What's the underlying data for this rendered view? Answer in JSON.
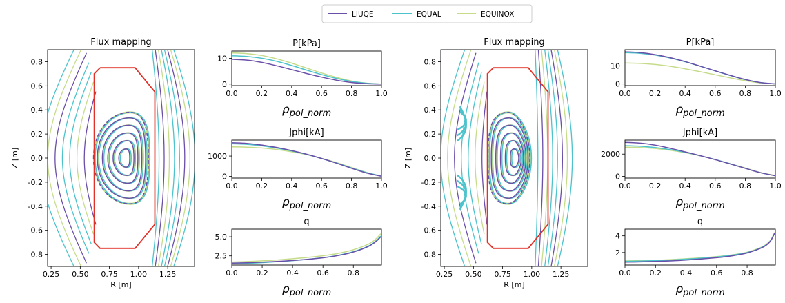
{
  "legend": {
    "placement": "top-center",
    "entries": [
      {
        "name": "LIUQE",
        "color": "#6a4fa8"
      },
      {
        "name": "EQUAL",
        "color": "#4cc3cc"
      },
      {
        "name": "EQUINOX",
        "color": "#c6dc8a"
      }
    ]
  },
  "boundary_color": "#e03228",
  "chart_data": [
    {
      "type": "contour",
      "title": "Flux mapping",
      "xlabel": "R [m]",
      "ylabel": "Z [m]",
      "xlim": [
        0.22,
        1.48
      ],
      "ylim": [
        -0.9,
        0.9
      ],
      "xticks": [
        "0.25",
        "0.50",
        "0.75",
        "1.00",
        "1.25"
      ],
      "yticks": [
        "-0.8",
        "-0.6",
        "-0.4",
        "-0.2",
        "0.0",
        "0.2",
        "0.4",
        "0.6",
        "0.8"
      ],
      "vessel_R": [
        0.67,
        0.97,
        1.14,
        1.14,
        0.97,
        0.67,
        0.62,
        0.62,
        0.67
      ],
      "vessel_Z": [
        0.75,
        0.75,
        0.55,
        -0.55,
        -0.75,
        -0.75,
        -0.7,
        0.7,
        0.75
      ],
      "axis": {
        "R": 0.89,
        "Z": 0.0
      },
      "lcfs_outer": {
        "R_inner": 0.62,
        "R_outer": 1.09,
        "Z_half": 0.38,
        "R_top": 0.93
      },
      "configuration": "limited"
    },
    {
      "type": "line",
      "title": "P[kPa]",
      "xlabel": "ρpol_norm",
      "xlim": [
        0,
        1.0
      ],
      "ylim": [
        -0.6,
        12.8
      ],
      "xticks": [
        "0.0",
        "0.2",
        "0.4",
        "0.6",
        "0.8",
        "1.0"
      ],
      "yticks": [
        "0",
        "10"
      ],
      "series": [
        {
          "name": "LIUQE",
          "x": [
            0,
            0.1,
            0.2,
            0.3,
            0.4,
            0.5,
            0.6,
            0.7,
            0.8,
            0.9,
            1.0
          ],
          "values": [
            9.6,
            9.3,
            8.4,
            7.1,
            5.6,
            4.1,
            2.7,
            1.5,
            0.6,
            0.15,
            0.0
          ]
        },
        {
          "name": "EQUAL",
          "x": [
            0,
            0.1,
            0.2,
            0.3,
            0.4,
            0.5,
            0.6,
            0.7,
            0.8,
            0.9,
            1.0
          ],
          "values": [
            11.0,
            10.7,
            10.0,
            8.8,
            7.2,
            5.4,
            3.7,
            2.2,
            1.0,
            0.3,
            0.0
          ]
        },
        {
          "name": "EQUINOX",
          "x": [
            0,
            0.1,
            0.2,
            0.3,
            0.4,
            0.5,
            0.6,
            0.7,
            0.8,
            0.9,
            1.0
          ],
          "values": [
            12.1,
            11.8,
            11.1,
            9.8,
            8.1,
            6.2,
            4.3,
            2.6,
            1.2,
            0.35,
            0.0
          ]
        }
      ]
    },
    {
      "type": "line",
      "title": "Jphi[kA]",
      "xlabel": "ρpol_norm",
      "xlim": [
        0,
        1.0
      ],
      "ylim": [
        -80,
        1780
      ],
      "xticks": [
        "0.0",
        "0.2",
        "0.4",
        "0.6",
        "0.8",
        "1.0"
      ],
      "yticks": [
        "0",
        "1000"
      ],
      "series": [
        {
          "name": "LIUQE",
          "x": [
            0,
            0.1,
            0.2,
            0.3,
            0.4,
            0.5,
            0.6,
            0.7,
            0.8,
            0.9,
            1.0
          ],
          "values": [
            1650,
            1620,
            1540,
            1420,
            1270,
            1090,
            880,
            650,
            400,
            170,
            10
          ]
        },
        {
          "name": "EQUAL",
          "x": [
            0,
            0.1,
            0.2,
            0.3,
            0.4,
            0.5,
            0.6,
            0.7,
            0.8,
            0.9,
            1.0
          ],
          "values": [
            1600,
            1575,
            1500,
            1390,
            1250,
            1080,
            880,
            660,
            420,
            190,
            15
          ]
        },
        {
          "name": "EQUINOX",
          "x": [
            0,
            0.1,
            0.2,
            0.3,
            0.4,
            0.5,
            0.6,
            0.7,
            0.8,
            0.9,
            1.0
          ],
          "values": [
            1450,
            1435,
            1395,
            1320,
            1210,
            1070,
            890,
            680,
            440,
            200,
            20
          ]
        }
      ]
    },
    {
      "type": "line",
      "title": "q",
      "xlabel": "ρpol_norm",
      "xlim": [
        0,
        0.985
      ],
      "ylim": [
        1.3,
        6.0
      ],
      "xticks": [
        "0.0",
        "0.2",
        "0.4",
        "0.6",
        "0.8"
      ],
      "yticks": [
        "2.5",
        "5.0"
      ],
      "series": [
        {
          "name": "LIUQE",
          "x": [
            0,
            0.1,
            0.2,
            0.3,
            0.4,
            0.5,
            0.6,
            0.7,
            0.8,
            0.9,
            0.95,
            0.98
          ],
          "values": [
            1.55,
            1.6,
            1.68,
            1.78,
            1.9,
            2.05,
            2.25,
            2.55,
            3.0,
            3.75,
            4.4,
            5.0
          ]
        },
        {
          "name": "EQUAL",
          "x": [
            0,
            0.1,
            0.2,
            0.3,
            0.4,
            0.5,
            0.6,
            0.7,
            0.8,
            0.9,
            0.95,
            0.98
          ],
          "values": [
            1.45,
            1.52,
            1.62,
            1.74,
            1.88,
            2.05,
            2.27,
            2.58,
            3.05,
            3.8,
            4.5,
            5.1
          ]
        },
        {
          "name": "EQUINOX",
          "x": [
            0,
            0.1,
            0.2,
            0.3,
            0.4,
            0.5,
            0.6,
            0.7,
            0.8,
            0.9,
            0.95,
            0.98
          ],
          "values": [
            1.7,
            1.76,
            1.85,
            1.97,
            2.12,
            2.3,
            2.52,
            2.83,
            3.3,
            4.05,
            4.75,
            5.4
          ]
        }
      ]
    },
    {
      "type": "contour",
      "title": "Flux mapping",
      "xlabel": "R [m]",
      "ylabel": "Z [m]",
      "xlim": [
        0.22,
        1.48
      ],
      "ylim": [
        -0.9,
        0.9
      ],
      "xticks": [
        "0.25",
        "0.50",
        "0.75",
        "1.00",
        "1.25"
      ],
      "yticks": [
        "-0.8",
        "-0.6",
        "-0.4",
        "-0.2",
        "0.0",
        "0.2",
        "0.4",
        "0.6",
        "0.8"
      ],
      "vessel_R": [
        0.67,
        0.97,
        1.14,
        1.14,
        0.97,
        0.67,
        0.62,
        0.62,
        0.67
      ],
      "vessel_Z": [
        0.75,
        0.75,
        0.55,
        -0.55,
        -0.75,
        -0.75,
        -0.7,
        0.7,
        0.75
      ],
      "axis": {
        "R": 0.87,
        "Z": 0.0
      },
      "lcfs_outer": {
        "R_inner": 0.63,
        "R_outer": 0.99,
        "Z_half": 0.38,
        "R_top": 0.8
      },
      "configuration": "diverted"
    },
    {
      "type": "line",
      "title": "P[kPa]",
      "xlabel": "ρpol_norm",
      "xlim": [
        0,
        1.0
      ],
      "ylim": [
        -0.9,
        19
      ],
      "xticks": [
        "0.0",
        "0.2",
        "0.4",
        "0.6",
        "0.8",
        "1.0"
      ],
      "yticks": [
        "0",
        "10"
      ],
      "series": [
        {
          "name": "LIUQE",
          "x": [
            0,
            0.1,
            0.2,
            0.3,
            0.4,
            0.5,
            0.6,
            0.7,
            0.8,
            0.9,
            1.0
          ],
          "values": [
            17.8,
            17.4,
            16.3,
            14.6,
            12.4,
            9.9,
            7.3,
            4.8,
            2.5,
            0.8,
            0.0
          ]
        },
        {
          "name": "EQUAL",
          "x": [
            0,
            0.1,
            0.2,
            0.3,
            0.4,
            0.5,
            0.6,
            0.7,
            0.8,
            0.9,
            1.0
          ],
          "values": [
            17.4,
            17.0,
            16.0,
            14.4,
            12.3,
            9.8,
            7.2,
            4.7,
            2.4,
            0.8,
            0.0
          ]
        },
        {
          "name": "EQUINOX",
          "x": [
            0,
            0.1,
            0.2,
            0.3,
            0.4,
            0.5,
            0.6,
            0.7,
            0.8,
            0.9,
            1.0
          ],
          "values": [
            11.6,
            11.4,
            10.8,
            9.8,
            8.4,
            6.8,
            5.1,
            3.4,
            1.8,
            0.6,
            0.0
          ]
        }
      ]
    },
    {
      "type": "line",
      "title": "Jphi[kA]",
      "xlabel": "ρpol_norm",
      "xlim": [
        0,
        1.0
      ],
      "ylim": [
        -150,
        3250
      ],
      "xticks": [
        "0.0",
        "0.2",
        "0.4",
        "0.6",
        "0.8",
        "1.0"
      ],
      "yticks": [
        "0",
        "2000"
      ],
      "series": [
        {
          "name": "LIUQE",
          "x": [
            0,
            0.1,
            0.2,
            0.3,
            0.4,
            0.5,
            0.6,
            0.7,
            0.8,
            0.9,
            1.0
          ],
          "values": [
            3050,
            2980,
            2800,
            2520,
            2200,
            1860,
            1500,
            1120,
            720,
            330,
            60
          ]
        },
        {
          "name": "EQUAL",
          "x": [
            0,
            0.1,
            0.2,
            0.3,
            0.4,
            0.5,
            0.6,
            0.7,
            0.8,
            0.9,
            1.0
          ],
          "values": [
            2750,
            2700,
            2580,
            2400,
            2160,
            1860,
            1510,
            1130,
            730,
            340,
            60
          ]
        },
        {
          "name": "EQUINOX",
          "x": [
            0,
            0.1,
            0.2,
            0.3,
            0.4,
            0.5,
            0.6,
            0.7,
            0.8,
            0.9,
            1.0
          ],
          "values": [
            2620,
            2590,
            2500,
            2350,
            2130,
            1850,
            1510,
            1140,
            750,
            360,
            80
          ]
        }
      ]
    },
    {
      "type": "line",
      "title": "q",
      "xlabel": "ρpol_norm",
      "xlim": [
        0,
        0.985
      ],
      "ylim": [
        0.5,
        4.8
      ],
      "xticks": [
        "0.0",
        "0.2",
        "0.4",
        "0.6",
        "0.8"
      ],
      "yticks": [
        "2",
        "4"
      ],
      "series": [
        {
          "name": "LIUQE",
          "x": [
            0,
            0.1,
            0.2,
            0.3,
            0.4,
            0.5,
            0.6,
            0.7,
            0.8,
            0.9,
            0.95,
            0.98
          ],
          "values": [
            0.85,
            0.88,
            0.93,
            1.0,
            1.1,
            1.22,
            1.38,
            1.6,
            1.95,
            2.6,
            3.3,
            4.3
          ]
        },
        {
          "name": "EQUAL",
          "x": [
            0,
            0.1,
            0.2,
            0.3,
            0.4,
            0.5,
            0.6,
            0.7,
            0.8,
            0.9,
            0.95,
            0.98
          ],
          "values": [
            0.95,
            0.98,
            1.03,
            1.1,
            1.2,
            1.32,
            1.47,
            1.68,
            2.0,
            2.65,
            3.35,
            4.35
          ]
        },
        {
          "name": "EQUINOX",
          "x": [
            0,
            0.1,
            0.2,
            0.3,
            0.4,
            0.5,
            0.6,
            0.7,
            0.8,
            0.9,
            0.95,
            0.98
          ],
          "values": [
            1.0,
            1.03,
            1.08,
            1.15,
            1.25,
            1.37,
            1.52,
            1.72,
            2.05,
            2.7,
            3.4,
            4.4
          ]
        }
      ]
    }
  ]
}
